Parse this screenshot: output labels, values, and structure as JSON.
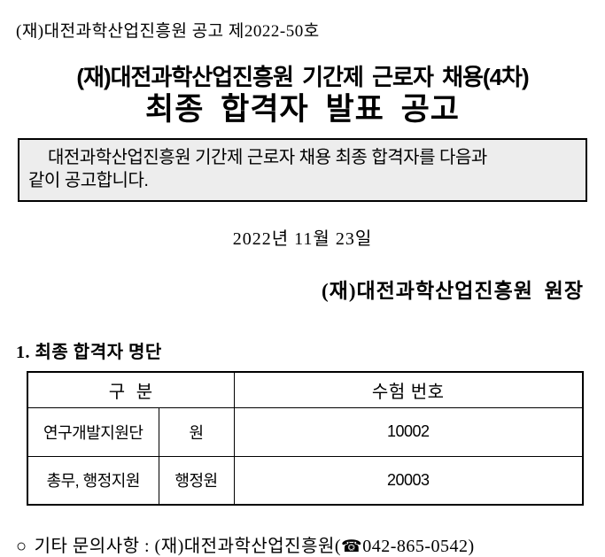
{
  "document": {
    "notice_number_line": "(재)대전과학산업진흥원 공고 제2022-50호",
    "title": {
      "line1": "(재)대전과학산업진흥원 기간제 근로자 채용(4차)",
      "line2": "최종 합격자 발표 공고"
    },
    "notice_box": {
      "line1": "대전과학산업진흥원 기간제 근로자 채용 최종 합격자를 다음과",
      "line2": "같이 공고합니다.",
      "background_color": "#ededed",
      "border_color": "#000000"
    },
    "date": "2022년 11월 23일",
    "signature": "(재)대전과학산업진흥원  원장",
    "section1": {
      "heading": "1. 최종 합격자 명단",
      "table": {
        "header_group": "구  분",
        "header_number": "수험 번호",
        "rows": [
          {
            "dept": "연구개발지원단",
            "position": "원",
            "number": "10002"
          },
          {
            "dept": "총무, 행정지원",
            "position": "행정원",
            "number": "20003"
          }
        ]
      }
    },
    "contact": {
      "bullet": "○",
      "text_before": "기타 문의사항 : (재)대전과학산업진흥원(",
      "phone_icon": "☎",
      "phone_number": "042-865-0542",
      "text_after": ")"
    }
  }
}
